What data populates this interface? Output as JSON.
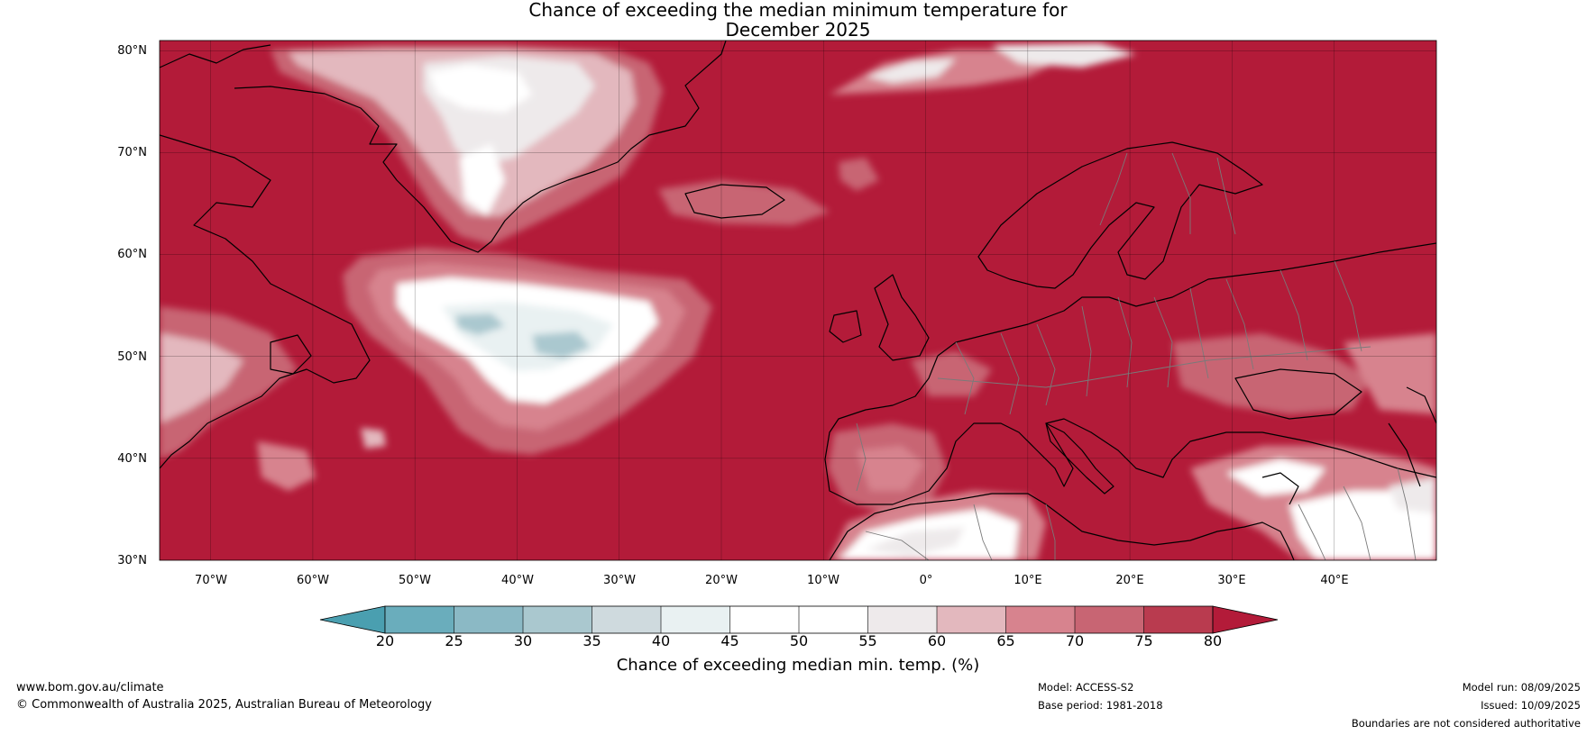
{
  "title": {
    "line1": "Chance of exceeding the median minimum temperature for",
    "line2": "December 2025"
  },
  "map": {
    "lat_labels": [
      "80°N",
      "70°N",
      "60°N",
      "50°N",
      "40°N",
      "30°N"
    ],
    "lon_labels": [
      "70°W",
      "60°W",
      "50°W",
      "40°W",
      "30°W",
      "20°W",
      "10°W",
      "0°",
      "10°E",
      "20°E",
      "30°E",
      "40°E"
    ],
    "lat_range": [
      30,
      81
    ],
    "lon_range": [
      -75,
      50
    ],
    "background_color": "#b31b39",
    "regions": [
      {
        "name": "Greenland interior",
        "value_band": "50-60",
        "color": "#eeebec"
      },
      {
        "name": "North Atlantic south of Greenland",
        "value_band": "30-50",
        "color": "#a8c7cd"
      },
      {
        "name": "North Africa",
        "value_band": "45-60",
        "color": "#f4f4f4"
      },
      {
        "name": "Middle East",
        "value_band": "45-65",
        "color": "#ecd9dc"
      }
    ]
  },
  "colorbar": {
    "ticks": [
      "20",
      "25",
      "30",
      "35",
      "40",
      "45",
      "50",
      "55",
      "60",
      "65",
      "70",
      "75",
      "80"
    ],
    "colors": [
      "#4a9fb0",
      "#6aadbc",
      "#8bb9c5",
      "#aac8cf",
      "#cfdade",
      "#e9f1f2",
      "#ffffff",
      "#ffffff",
      "#eeeaeb",
      "#e3b8be",
      "#d7838e",
      "#c86573",
      "#b93b4f",
      "#b31b39"
    ],
    "label": "Chance of exceeding median min. temp. (%)"
  },
  "footer": {
    "website": "www.bom.gov.au/climate",
    "copyright": "© Commonwealth of Australia 2025, Australian Bureau of Meteorology",
    "model": "Model: ACCESS-S2",
    "base_period": "Base period: 1981-2018",
    "model_run": "Model run: 08/09/2025",
    "issued": "Issued: 10/09/2025",
    "disclaimer": "Boundaries are not considered authoritative"
  }
}
